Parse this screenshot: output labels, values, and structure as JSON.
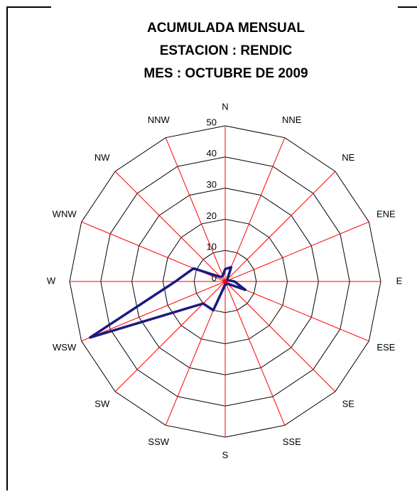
{
  "chart_data": {
    "type": "radar",
    "title": [
      "ACUMULADA MENSUAL",
      "ESTACION : RENDIC",
      "MES : OCTUBRE DE 2009"
    ],
    "categories": [
      "N",
      "NNE",
      "NE",
      "ENE",
      "E",
      "ESE",
      "SE",
      "SSE",
      "S",
      "SSW",
      "SW",
      "WSW",
      "W",
      "WNW",
      "NW",
      "NNW"
    ],
    "series": [
      {
        "color": "#1a1a80",
        "values": [
          4,
          5,
          1,
          1,
          3,
          7,
          1,
          1,
          1,
          10,
          10,
          47,
          16,
          11,
          2,
          2
        ]
      }
    ],
    "ylim": [
      0,
      50
    ],
    "yticks": [
      0,
      10,
      20,
      30,
      40,
      50
    ],
    "grid": true,
    "spoke_color": "#ff0000"
  }
}
